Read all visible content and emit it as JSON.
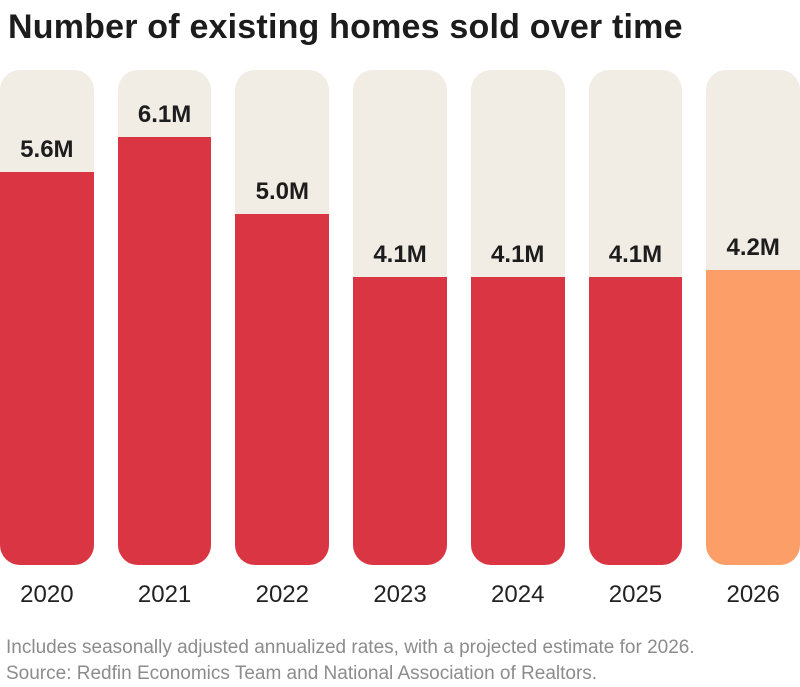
{
  "chart_data": {
    "type": "bar",
    "title": "Number of existing homes sold over time",
    "categories": [
      "2020",
      "2021",
      "2022",
      "2023",
      "2024",
      "2025",
      "2026"
    ],
    "values": [
      5.6,
      6.1,
      5.0,
      4.1,
      4.1,
      4.1,
      4.2
    ],
    "value_labels": [
      "5.6M",
      "6.1M",
      "5.0M",
      "4.1M",
      "4.1M",
      "4.1M",
      "4.2M"
    ],
    "bar_colors": [
      "#da3543",
      "#da3543",
      "#da3543",
      "#da3543",
      "#da3543",
      "#da3543",
      "#fc9e67"
    ],
    "highlight_category": "2026",
    "xlabel": "",
    "ylabel": "",
    "ylim": [
      0,
      7.07
    ],
    "grid": false,
    "legend": "none",
    "units": "millions of homes"
  },
  "footer": {
    "line1": "Includes seasonally adjusted annualized rates, with a projected estimate for 2026.",
    "line2": "Source: Redfin Economics Team and National Association of Realtors."
  },
  "colors": {
    "bar_red": "#da3543",
    "bar_orange": "#fc9e67",
    "track_beige": "#f1ece4",
    "title_text": "#1c1c1c",
    "axis_text": "#222222",
    "footnote_text": "#8c8c8c",
    "background": "#ffffff"
  }
}
